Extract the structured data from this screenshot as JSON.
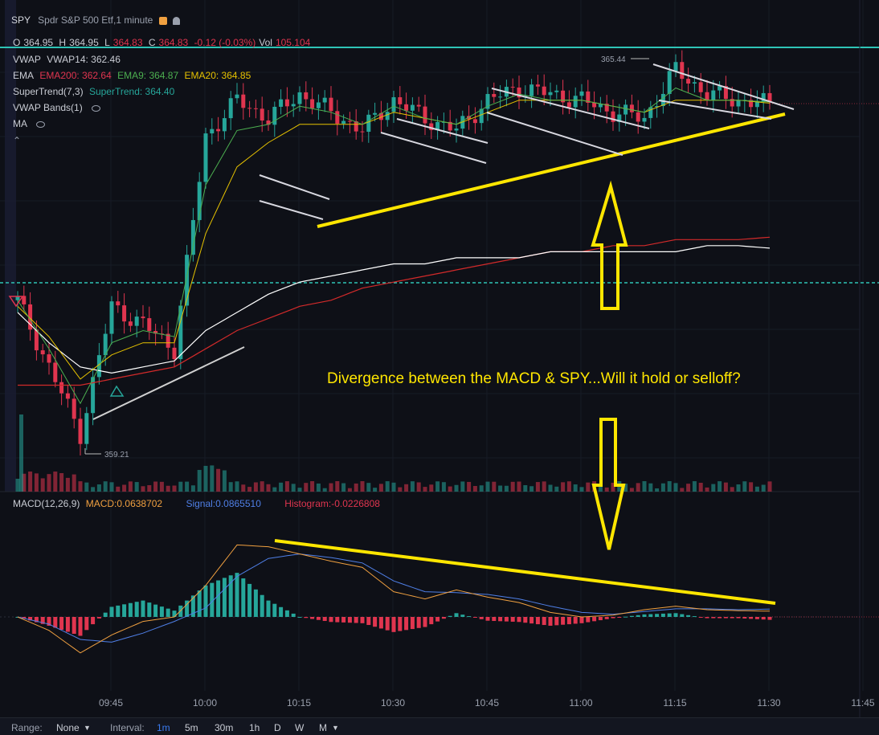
{
  "header": {
    "symbol": "SPY",
    "name": "Spdr S&P 500 Etf,1 minute",
    "ohlc": {
      "o_label": "O",
      "o": "364.95",
      "h_label": "H",
      "h": "364.95",
      "l_label": "L",
      "l": "364.83",
      "c_label": "C",
      "c": "364.83",
      "chg": "-0.12 (-0.03%)",
      "vol_label": "Vol",
      "vol": "105.104"
    }
  },
  "indicators": [
    {
      "name": "VWAP",
      "vals": [
        "VWAP14: 362.46"
      ]
    },
    {
      "name": "EMA",
      "vals": [
        "EMA200: 362.64",
        "EMA9: 364.87",
        "EMA20: 364.85"
      ]
    },
    {
      "name": "SuperTrend(7,3)",
      "vals": [
        "SuperTrend: 364.40"
      ]
    },
    {
      "name": "VWAP Bands(1)",
      "vals": []
    },
    {
      "name": "MA",
      "vals": []
    }
  ],
  "macd_legend": {
    "name": "MACD(12,26,9)",
    "macd": "MACD:0.0638702",
    "signal": "Signal:0.0865510",
    "histogram": "Histogram:-0.0226808"
  },
  "annotation": "Divergence between the MACD & SPY...Will it hold or selloff?",
  "price_labels": {
    "high": "365.44",
    "low": "359.21"
  },
  "time_axis": [
    "09:45",
    "10:00",
    "10:15",
    "10:30",
    "10:45",
    "11:00",
    "11:15",
    "11:30",
    "11:45"
  ],
  "bottom_bar": {
    "range_label": "Range:",
    "range_value": "None",
    "interval_label": "Interval:",
    "intervals": [
      "1m",
      "5m",
      "30m",
      "1h",
      "D",
      "W",
      "M"
    ]
  },
  "colors": {
    "background": "#0e1017",
    "up": "#26a69a",
    "down": "#e0354f",
    "ema9": "#4caf50",
    "ema20": "#e6c200",
    "ema200": "#d22a2a",
    "vwap": "#ffffff",
    "macd": "#f0a040",
    "signal": "#4f7fe6",
    "annotation": "#ffe600",
    "level_line": "#2ec4b6"
  },
  "chart_data": {
    "type": "line",
    "title": "SPY 1 minute",
    "x_unit": "minutes since 09:35",
    "price": {
      "x": [
        0,
        5,
        10,
        15,
        20,
        25,
        30,
        35,
        40,
        45,
        50,
        55,
        60,
        65,
        70,
        75,
        80,
        85,
        90,
        95,
        100,
        105,
        110,
        115,
        120
      ],
      "close": [
        361.6,
        360.5,
        359.4,
        361.5,
        361.2,
        360.8,
        364.3,
        364.9,
        364.6,
        365.0,
        364.7,
        364.4,
        364.9,
        364.6,
        364.4,
        364.9,
        365.1,
        365.0,
        364.9,
        364.7,
        364.6,
        365.4,
        365.0,
        364.9,
        364.83
      ],
      "ema9": [
        361.6,
        360.8,
        359.9,
        360.9,
        361.1,
        361.0,
        363.5,
        364.4,
        364.5,
        364.8,
        364.7,
        364.5,
        364.8,
        364.6,
        364.5,
        364.8,
        365.0,
        364.9,
        364.9,
        364.8,
        364.7,
        365.1,
        364.9,
        364.9,
        364.87
      ],
      "ema20": [
        361.5,
        361.0,
        360.3,
        360.7,
        360.9,
        360.9,
        362.7,
        363.8,
        364.2,
        364.5,
        364.5,
        364.5,
        364.7,
        364.6,
        364.5,
        364.7,
        364.9,
        364.9,
        364.9,
        364.8,
        364.7,
        364.9,
        364.9,
        364.9,
        364.85
      ],
      "ema200": [
        360.2,
        360.2,
        360.2,
        360.3,
        360.4,
        360.5,
        360.8,
        361.1,
        361.3,
        361.5,
        361.6,
        361.8,
        361.9,
        362.0,
        362.1,
        362.2,
        362.3,
        362.4,
        362.4,
        362.5,
        362.5,
        362.6,
        362.6,
        362.6,
        362.64
      ],
      "vwap": [
        361.4,
        360.9,
        360.5,
        360.4,
        360.5,
        360.6,
        361.1,
        361.4,
        361.7,
        361.9,
        362.0,
        362.1,
        362.2,
        362.2,
        362.3,
        362.3,
        362.3,
        362.4,
        362.4,
        362.4,
        362.4,
        362.4,
        362.5,
        362.5,
        362.46
      ]
    },
    "high": 365.44,
    "low": 359.21,
    "macd": {
      "x": [
        0,
        5,
        10,
        15,
        20,
        25,
        30,
        35,
        40,
        45,
        50,
        55,
        60,
        65,
        70,
        75,
        80,
        85,
        90,
        95,
        100,
        105,
        110,
        115,
        120
      ],
      "macd": [
        0.0,
        -0.15,
        -0.4,
        -0.2,
        -0.05,
        0.0,
        0.35,
        0.8,
        0.78,
        0.7,
        0.62,
        0.55,
        0.28,
        0.2,
        0.3,
        0.22,
        0.16,
        0.05,
        0.0,
        0.02,
        0.08,
        0.12,
        0.08,
        0.07,
        0.064
      ],
      "signal": [
        0.0,
        -0.08,
        -0.25,
        -0.28,
        -0.18,
        -0.05,
        0.1,
        0.45,
        0.65,
        0.7,
        0.66,
        0.6,
        0.4,
        0.28,
        0.27,
        0.25,
        0.2,
        0.12,
        0.05,
        0.03,
        0.06,
        0.09,
        0.09,
        0.08,
        0.087
      ]
    }
  }
}
